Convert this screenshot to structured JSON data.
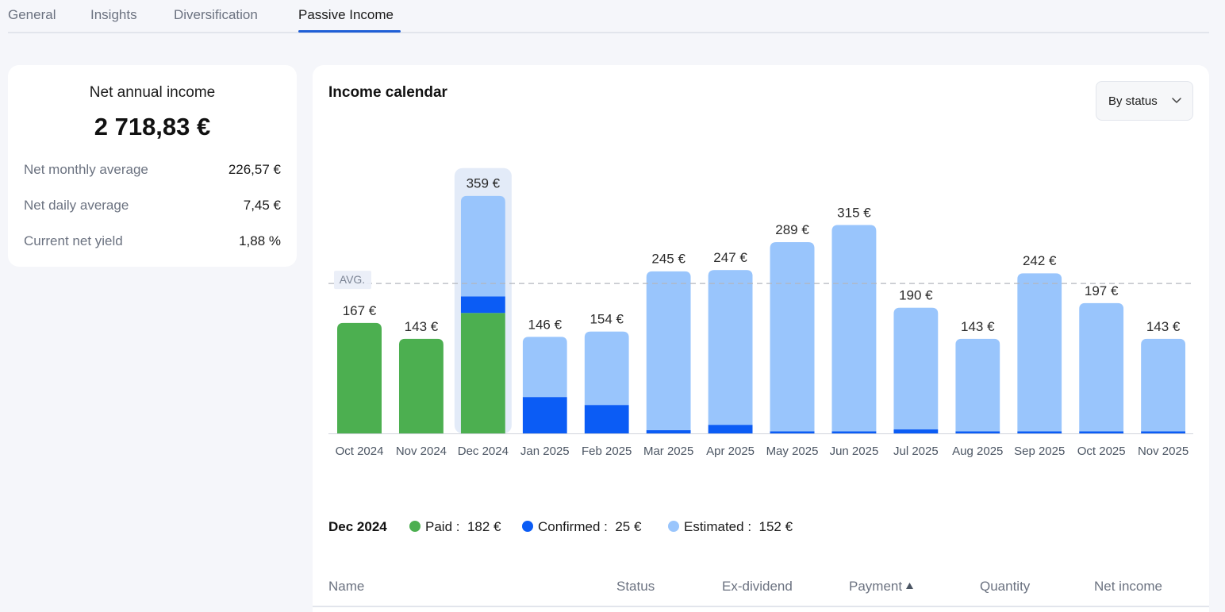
{
  "tabs": [
    {
      "label": "General"
    },
    {
      "label": "Insights"
    },
    {
      "label": "Diversification"
    },
    {
      "label": "Passive Income"
    }
  ],
  "summary": {
    "title": "Net annual income",
    "amount": "2 718,83 €",
    "stats": [
      {
        "label": "Net monthly average",
        "value": "226,57 €"
      },
      {
        "label": "Net daily average",
        "value": "7,45 €"
      },
      {
        "label": "Current net yield",
        "value": "1,88 %"
      }
    ]
  },
  "calendar": {
    "title": "Income calendar",
    "filter_label": "By status",
    "filter_icon": "chevron-down-icon",
    "avg_label": "AVG."
  },
  "colors": {
    "paid": "#4caf50",
    "confirmed": "#0b5cf5",
    "estimated": "#99c5fc",
    "accent": "#1f5fd6"
  },
  "chart_data": {
    "type": "bar",
    "stacked": true,
    "categories": [
      "Oct 2024",
      "Nov 2024",
      "Dec 2024",
      "Jan 2025",
      "Feb 2025",
      "Mar 2025",
      "Apr 2025",
      "May 2025",
      "Jun 2025",
      "Jul 2025",
      "Aug 2025",
      "Sep 2025",
      "Oct 2025",
      "Nov 2025"
    ],
    "totals_labels": [
      "167 €",
      "143 €",
      "359 €",
      "146 €",
      "154 €",
      "245 €",
      "247 €",
      "289 €",
      "315 €",
      "190 €",
      "143 €",
      "242 €",
      "197 €",
      "143 €"
    ],
    "series": [
      {
        "name": "Paid",
        "values": [
          167,
          143,
          182,
          0,
          0,
          0,
          0,
          0,
          0,
          0,
          0,
          0,
          0,
          0
        ]
      },
      {
        "name": "Confirmed",
        "values": [
          0,
          0,
          25,
          55,
          43,
          5,
          13,
          3,
          3,
          6,
          3,
          3,
          3,
          3
        ]
      },
      {
        "name": "Estimated",
        "values": [
          0,
          0,
          152,
          91,
          111,
          240,
          234,
          286,
          312,
          184,
          140,
          239,
          194,
          140
        ]
      }
    ],
    "average": 226.57,
    "highlighted": "Dec 2024",
    "grid": false
  },
  "selected_month": {
    "label": "Dec 2024",
    "items": [
      {
        "name": "Paid",
        "sep": " :",
        "value": "182 €"
      },
      {
        "name": "Confirmed",
        "sep": " :",
        "value": "25 €"
      },
      {
        "name": "Estimated",
        "sep": " :",
        "value": "152 €"
      }
    ]
  },
  "table": {
    "columns": [
      {
        "label": "Name"
      },
      {
        "label": "Status"
      },
      {
        "label": "Ex-dividend"
      },
      {
        "label": "Payment",
        "sort_icon": "sort-asc-icon"
      },
      {
        "label": "Quantity"
      },
      {
        "label": "Net income"
      }
    ]
  }
}
